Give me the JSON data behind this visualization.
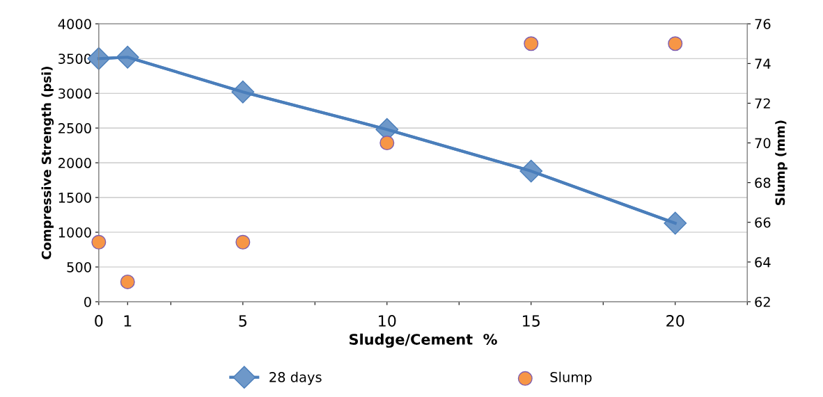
{
  "chart_data": {
    "type": "line",
    "xlabel": "Sludge/Cement  %",
    "ylabel": "Compressive Strength (psi)",
    "y2label": "Slump (mm)",
    "series": [
      {
        "name": "28 days",
        "color": "#4a7ebb",
        "marker": "diamond",
        "x": [
          0,
          1,
          5,
          10,
          15,
          20
        ],
        "values": [
          3500,
          3520,
          3020,
          2480,
          1880,
          1130
        ]
      },
      {
        "name": "Slump",
        "type": "scatter",
        "axis": "y2",
        "color": "#f79646",
        "marker": "circle",
        "x": [
          0,
          1,
          5,
          10,
          15,
          20
        ],
        "values": [
          65,
          63,
          65,
          70,
          75,
          75
        ]
      }
    ],
    "xlim": [
      0,
      22.5
    ],
    "xticks": [
      {
        "value": 0,
        "label": "0"
      },
      {
        "value": 1,
        "label": "1"
      },
      {
        "value": 2.5,
        "label": null
      },
      {
        "value": 5,
        "label": "5"
      },
      {
        "value": 7.5,
        "label": null
      },
      {
        "value": 10,
        "label": "10"
      },
      {
        "value": 12.5,
        "label": null
      },
      {
        "value": 15,
        "label": "15"
      },
      {
        "value": 17.5,
        "label": null
      },
      {
        "value": 20,
        "label": "20"
      },
      {
        "value": 22.5,
        "label": null
      }
    ],
    "ylim": [
      0,
      4000
    ],
    "yticks": [
      0,
      500,
      1000,
      1500,
      2000,
      2500,
      3000,
      3500,
      4000
    ],
    "y2lim": [
      62,
      76
    ],
    "y2ticks": [
      62,
      64,
      66,
      68,
      70,
      72,
      74,
      76
    ],
    "grid": "y",
    "legend": "bottom"
  }
}
